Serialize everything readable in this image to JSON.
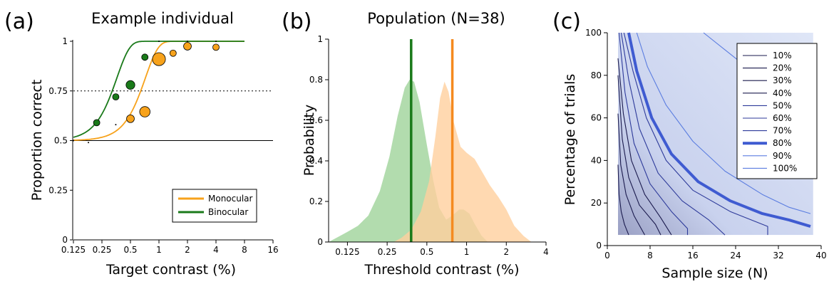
{
  "colors": {
    "monocular": "#f7a21b",
    "binocular": "#1a7a1a",
    "binocular_fill": "#9fd39a",
    "monocular_fill": "#ffcf9e",
    "contour_dark": "#1a1a4d",
    "contour_blue": "#3f5bd1",
    "contour_bg": "#dfe6f7"
  },
  "panels": {
    "a": {
      "letter": "(a)",
      "title": "Example individual",
      "xlabel": "Target contrast (%)",
      "ylabel": "Proportion correct"
    },
    "b": {
      "letter": "(b)",
      "title": "Population (N=38)",
      "xlabel": "Threshold contrast (%)",
      "ylabel": "Probability"
    },
    "c": {
      "letter": "(c)",
      "xlabel": "Sample size (N)",
      "ylabel": "Percentage of trials"
    }
  },
  "chart_data": [
    {
      "type": "scatter",
      "name": "panel-a",
      "title": "Example individual",
      "xlabel": "Target contrast (%)",
      "ylabel": "Proportion correct",
      "x_scale": "log2",
      "xlim": [
        0.125,
        16
      ],
      "ylim": [
        0,
        1
      ],
      "xticks": [
        0.125,
        0.25,
        0.5,
        1,
        2,
        4,
        8,
        16
      ],
      "xtick_labels": [
        "0.125",
        "0.25",
        "0.5",
        "1",
        "2",
        "4",
        "8",
        "16"
      ],
      "yticks": [
        0,
        0.25,
        0.5,
        0.75,
        1
      ],
      "ytick_labels": [
        "0",
        "0.25",
        "0.5",
        "0.75",
        "1"
      ],
      "hlines": [
        {
          "y": 0.5,
          "style": "solid"
        },
        {
          "y": 0.75,
          "style": "dotted"
        }
      ],
      "legend": {
        "position": "bottom-right",
        "entries": [
          "Monocular",
          "Binocular"
        ]
      },
      "fits": [
        {
          "name": "Monocular",
          "threshold": 0.72,
          "slope": 3.2
        },
        {
          "name": "Binocular",
          "threshold": 0.36,
          "slope": 3.2
        }
      ],
      "series": [
        {
          "name": "Monocular",
          "points": [
            {
              "x": 0.125,
              "y": 0.5,
              "n": 0
            },
            {
              "x": 0.35,
              "y": 0.58,
              "n": 0
            },
            {
              "x": 0.5,
              "y": 0.61,
              "n": 2
            },
            {
              "x": 0.71,
              "y": 0.645,
              "n": 5
            },
            {
              "x": 1.0,
              "y": 0.91,
              "n": 9
            },
            {
              "x": 1.41,
              "y": 0.94,
              "n": 1
            },
            {
              "x": 2.0,
              "y": 0.975,
              "n": 2
            },
            {
              "x": 4.0,
              "y": 0.97,
              "n": 1
            }
          ]
        },
        {
          "name": "Binocular",
          "points": [
            {
              "x": 0.125,
              "y": 0.5,
              "n": 0
            },
            {
              "x": 0.18,
              "y": 0.49,
              "n": 0
            },
            {
              "x": 0.22,
              "y": 0.59,
              "n": 1
            },
            {
              "x": 0.35,
              "y": 0.72,
              "n": 1
            },
            {
              "x": 0.5,
              "y": 0.78,
              "n": 3
            },
            {
              "x": 0.71,
              "y": 0.92,
              "n": 1
            },
            {
              "x": 1.0,
              "y": 1.0,
              "n": 0
            },
            {
              "x": 2.0,
              "y": 1.0,
              "n": 0
            },
            {
              "x": 4.0,
              "y": 1.0,
              "n": 0
            }
          ]
        }
      ]
    },
    {
      "type": "area",
      "name": "panel-b",
      "title": "Population (N=38)",
      "xlabel": "Threshold contrast (%)",
      "ylabel": "Probability",
      "x_scale": "log2",
      "xlim": [
        0.09,
        4
      ],
      "ylim": [
        0,
        1
      ],
      "xticks": [
        0.125,
        0.25,
        0.5,
        1,
        2,
        4
      ],
      "xtick_labels": [
        "0.125",
        "0.25",
        "0.5",
        "1",
        "2",
        "4"
      ],
      "yticks": [
        0,
        0.2,
        0.4,
        0.6,
        0.8,
        1
      ],
      "ytick_labels": [
        "0",
        "0.2",
        "0.4",
        "0.6",
        "0.8",
        "1"
      ],
      "series": [
        {
          "name": "Binocular",
          "x": [
            0.09,
            0.11,
            0.125,
            0.15,
            0.18,
            0.22,
            0.26,
            0.3,
            0.34,
            0.37,
            0.4,
            0.44,
            0.5,
            0.56,
            0.62,
            0.7,
            0.78,
            0.88,
            0.95,
            1.05,
            1.15,
            1.3,
            1.45
          ],
          "y": [
            0.0,
            0.03,
            0.05,
            0.08,
            0.13,
            0.25,
            0.42,
            0.62,
            0.76,
            0.8,
            0.79,
            0.69,
            0.48,
            0.3,
            0.17,
            0.11,
            0.13,
            0.16,
            0.16,
            0.14,
            0.09,
            0.03,
            0.0
          ],
          "median": 0.38
        },
        {
          "name": "Monocular",
          "x": [
            0.28,
            0.32,
            0.38,
            0.45,
            0.52,
            0.58,
            0.63,
            0.68,
            0.73,
            0.8,
            0.9,
            1.0,
            1.15,
            1.3,
            1.5,
            1.75,
            2.0,
            2.3,
            2.7,
            3.1
          ],
          "y": [
            0.0,
            0.02,
            0.06,
            0.15,
            0.3,
            0.52,
            0.71,
            0.79,
            0.74,
            0.59,
            0.47,
            0.44,
            0.41,
            0.35,
            0.28,
            0.22,
            0.16,
            0.08,
            0.03,
            0.0
          ],
          "median": 0.78
        }
      ]
    },
    {
      "type": "line",
      "subtype": "contour",
      "name": "panel-c",
      "xlabel": "Sample size (N)",
      "ylabel": "Percentage of trials",
      "xlim": [
        0,
        40
      ],
      "ylim": [
        0,
        100
      ],
      "xticks": [
        0,
        8,
        16,
        24,
        32,
        40
      ],
      "xtick_labels": [
        "0",
        "8",
        "16",
        "24",
        "32",
        "40"
      ],
      "yticks": [
        0,
        20,
        40,
        60,
        80,
        100
      ],
      "ytick_labels": [
        "0",
        "20",
        "40",
        "60",
        "80",
        "100"
      ],
      "legend": {
        "position": "top-right"
      },
      "contours": [
        {
          "level": "10%",
          "xy": [
            [
              2,
              38
            ],
            [
              2.2,
              24
            ],
            [
              2.6,
              16
            ],
            [
              3.2,
              10
            ],
            [
              4,
              5
            ]
          ]
        },
        {
          "level": "20%",
          "xy": [
            [
              2,
              62
            ],
            [
              2.5,
              38
            ],
            [
              3.5,
              24
            ],
            [
              5,
              14
            ],
            [
              7,
              5
            ]
          ]
        },
        {
          "level": "30%",
          "xy": [
            [
              2,
              80
            ],
            [
              2.8,
              50
            ],
            [
              4,
              32
            ],
            [
              6,
              19
            ],
            [
              9,
              10
            ],
            [
              10,
              5
            ]
          ]
        },
        {
          "level": "40%",
          "xy": [
            [
              2,
              88
            ],
            [
              3,
              62
            ],
            [
              4.5,
              40
            ],
            [
              7,
              24
            ],
            [
              10,
              13
            ],
            [
              12,
              5
            ]
          ]
        },
        {
          "level": "50%",
          "xy": [
            [
              2.2,
              100
            ],
            [
              3.3,
              72
            ],
            [
              5,
              48
            ],
            [
              8,
              29
            ],
            [
              12,
              16
            ],
            [
              15,
              8
            ],
            [
              15,
              5
            ]
          ]
        },
        {
          "level": "60%",
          "xy": [
            [
              2.6,
              100
            ],
            [
              4,
              78
            ],
            [
              6,
              55
            ],
            [
              9.5,
              34
            ],
            [
              14,
              21
            ],
            [
              19,
              12
            ],
            [
              22,
              5
            ]
          ]
        },
        {
          "level": "70%",
          "xy": [
            [
              3.1,
              100
            ],
            [
              4.8,
              82
            ],
            [
              7.3,
              60
            ],
            [
              11,
              40
            ],
            [
              16,
              26
            ],
            [
              23,
              16
            ],
            [
              30,
              9
            ],
            [
              30,
              5
            ]
          ]
        },
        {
          "level": "80%",
          "xy": [
            [
              4.0,
              100
            ],
            [
              5.5,
              82
            ],
            [
              8.3,
              60
            ],
            [
              12,
              43
            ],
            [
              17,
              30
            ],
            [
              23,
              21
            ],
            [
              29,
              15
            ],
            [
              34,
              12
            ],
            [
              38,
              9
            ]
          ]
        },
        {
          "level": "90%",
          "xy": [
            [
              5.5,
              100
            ],
            [
              7.5,
              84
            ],
            [
              11,
              66
            ],
            [
              16,
              49
            ],
            [
              22,
              35
            ],
            [
              29,
              24
            ],
            [
              34,
              18
            ],
            [
              38,
              15
            ]
          ]
        },
        {
          "level": "100%",
          "xy": [
            [
              18,
              100
            ],
            [
              22,
              92
            ],
            [
              29,
              78
            ],
            [
              35,
              66
            ],
            [
              38,
              60
            ]
          ]
        }
      ]
    }
  ]
}
